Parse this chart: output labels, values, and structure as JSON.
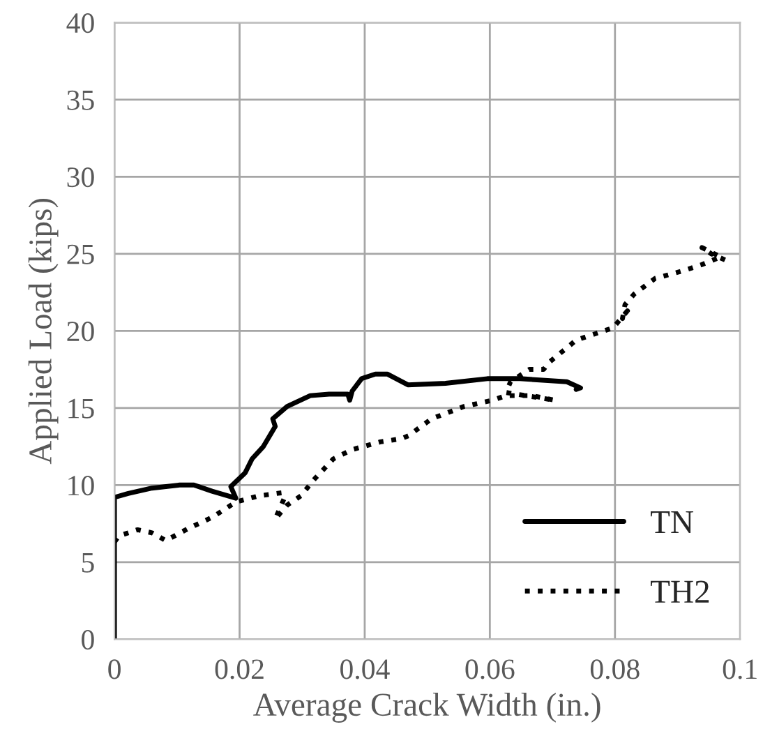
{
  "chart_data": {
    "type": "line",
    "xlabel": "Average Crack Width (in.)",
    "ylabel": "Applied Load (kips)",
    "xlim": [
      0,
      0.1
    ],
    "ylim": [
      0,
      40
    ],
    "xticks": [
      0,
      0.02,
      0.04,
      0.06,
      0.08,
      0.1
    ],
    "yticks": [
      0,
      5,
      10,
      15,
      20,
      25,
      30,
      35,
      40
    ],
    "grid": true,
    "legend": "bottom right",
    "marker": "none",
    "series": [
      {
        "name": "TN",
        "color": "#000000",
        "line_style": "solid",
        "x": [
          0,
          0,
          0.0022,
          0.006,
          0.0104,
          0.0127,
          0.0156,
          0.0194,
          0.0186,
          0.0209,
          0.022,
          0.0238,
          0.0257,
          0.0253,
          0.0276,
          0.0313,
          0.0343,
          0.0373,
          0.0376,
          0.038,
          0.0395,
          0.0417,
          0.0436,
          0.0469,
          0.0529,
          0.0596,
          0.0648,
          0.0723,
          0.0745,
          0.0738
        ],
        "values": [
          0,
          9.2,
          9.45,
          9.8,
          10.0,
          10.0,
          9.6,
          9.15,
          9.9,
          10.8,
          11.7,
          12.5,
          13.8,
          14.3,
          15.1,
          15.8,
          15.9,
          15.9,
          15.5,
          16.1,
          16.9,
          17.2,
          17.2,
          16.5,
          16.6,
          16.9,
          16.9,
          16.7,
          16.3,
          16.2
        ]
      },
      {
        "name": "TH2",
        "color": "#000000",
        "line_style": "dotted",
        "x": [
          0,
          0.0007,
          0.0037,
          0.006,
          0.0082,
          0.0119,
          0.0156,
          0.0194,
          0.0231,
          0.0268,
          0.0272,
          0.0257,
          0.0276,
          0.0298,
          0.032,
          0.035,
          0.038,
          0.0425,
          0.0458,
          0.047,
          0.0507,
          0.0559,
          0.0604,
          0.0626,
          0.0667,
          0.0704,
          0.0626,
          0.0633,
          0.0663,
          0.0686,
          0.0693,
          0.0738,
          0.0797,
          0.082,
          0.0812,
          0.0816,
          0.0831,
          0.0864,
          0.0909,
          0.0939,
          0.0969,
          0.0939,
          0.0954,
          0.0976,
          0.0987
        ],
        "values": [
          6.3,
          6.7,
          7.1,
          6.9,
          6.4,
          7.2,
          7.9,
          8.9,
          9.3,
          9.5,
          9.2,
          7.8,
          8.7,
          9.3,
          10.4,
          11.7,
          12.3,
          12.8,
          13.0,
          13.2,
          14.3,
          15.1,
          15.5,
          15.8,
          15.8,
          15.5,
          16.0,
          16.7,
          17.5,
          17.5,
          17.9,
          19.4,
          20.2,
          21.3,
          20.8,
          21.7,
          22.4,
          23.4,
          23.9,
          24.3,
          24.8,
          25.4,
          25.0,
          24.6,
          24.6
        ]
      }
    ]
  }
}
